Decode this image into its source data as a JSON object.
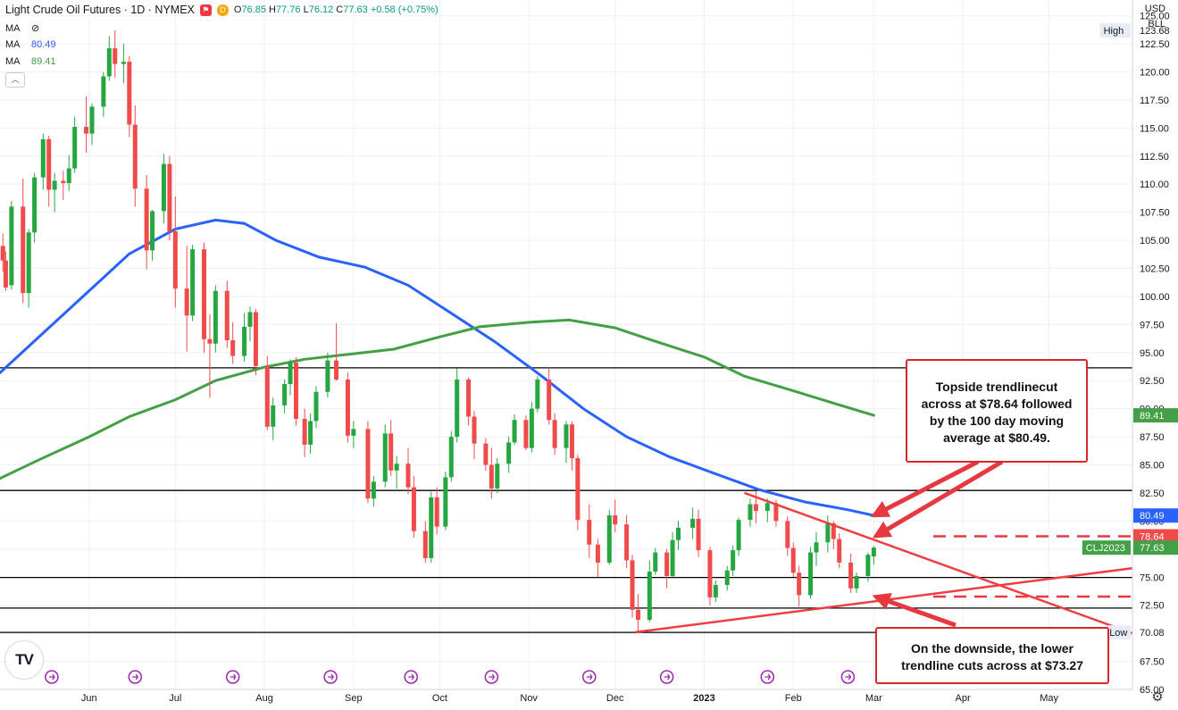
{
  "header": {
    "title": "Light Crude Oil Futures · 1D · NYMEX",
    "open_label": "O",
    "open": "76.85",
    "high_label": "H",
    "high": "77.76",
    "low_label": "L",
    "low": "76.12",
    "close_label": "C",
    "close": "77.63",
    "change": "+0.58 (+0.75%)",
    "flag_icon": "flag-icon",
    "d_icon": "D"
  },
  "indicators": [
    {
      "label": "MA",
      "value": "",
      "icon": "eye-hidden-icon",
      "color": "#131722"
    },
    {
      "label": "MA",
      "value": "80.49",
      "color": "#2962ff"
    },
    {
      "label": "MA",
      "value": "89.41",
      "color": "#43a047"
    }
  ],
  "currency": "USD",
  "unit": "BLL",
  "logo": "TV",
  "settings_icon": "gear-icon",
  "chart_data": {
    "type": "candlestick",
    "y_range": [
      65.0,
      126.4
    ],
    "y_ticks": [
      "125.00",
      "122.50",
      "120.00",
      "117.50",
      "115.00",
      "112.50",
      "110.00",
      "107.50",
      "105.00",
      "102.50",
      "100.00",
      "97.50",
      "95.00",
      "92.50",
      "90.00",
      "87.50",
      "85.00",
      "82.50",
      "80.00",
      "77.50",
      "75.00",
      "72.50",
      "70.00",
      "67.50",
      "65.00"
    ],
    "y_tick_values": [
      125,
      122.5,
      120,
      117.5,
      115,
      112.5,
      110,
      107.5,
      105,
      102.5,
      100,
      97.5,
      95,
      92.5,
      90,
      87.5,
      85,
      82.5,
      80,
      77.5,
      75,
      72.5,
      70,
      67.5,
      65
    ],
    "x_labels": [
      "Jun",
      "Jul",
      "Aug",
      "Sep",
      "Oct",
      "Nov",
      "Dec",
      "2023",
      "Feb",
      "Mar",
      "Apr",
      "May"
    ],
    "x_dates": [
      "2022-06-01",
      "2022-07-01",
      "2022-08-01",
      "2022-09-01",
      "2022-10-01",
      "2022-11-01",
      "2022-12-01",
      "2023-01-01",
      "2023-02-01",
      "2023-03-01",
      "2023-04-01",
      "2023-05-01"
    ],
    "x_range": [
      "2022-05-01",
      "2023-05-30"
    ],
    "event_markers": [
      "2022-05-19",
      "2022-06-17",
      "2022-07-21",
      "2022-08-24",
      "2022-09-21",
      "2022-10-19",
      "2022-11-22",
      "2022-12-19",
      "2023-01-23",
      "2023-02-20"
    ],
    "price_levels": [
      {
        "value": 93.64,
        "label": "93.64",
        "style": "solid"
      },
      {
        "value": 82.72,
        "label": "82.72",
        "style": "solid"
      },
      {
        "value": 74.97,
        "label": "74.97",
        "style": "solid"
      },
      {
        "value": 72.25,
        "label": "72.25",
        "style": "solid"
      },
      {
        "value": 70.08,
        "label": "70.08",
        "style": "solid"
      },
      {
        "value": 78.64,
        "label": "78.64",
        "style": "dashed"
      },
      {
        "value": 73.27,
        "label": "73.27",
        "style": "dashed"
      }
    ],
    "price_tags": [
      {
        "value": 123.68,
        "label": "123.68",
        "caption": "High",
        "kind": "plain"
      },
      {
        "value": 89.41,
        "label": "89.41",
        "kind": "green"
      },
      {
        "value": 80.49,
        "label": "80.49",
        "kind": "blue"
      },
      {
        "value": 78.64,
        "label": "78.64",
        "kind": "red"
      },
      {
        "value": 77.63,
        "label": "77.63",
        "caption": "CLJ2023",
        "kind": "green"
      },
      {
        "value": 70.08,
        "label": "70.08",
        "caption": "Low",
        "kind": "plain"
      }
    ],
    "trendlines": [
      {
        "name": "upper",
        "from": [
          "2023-01-15",
          82.5
        ],
        "to": [
          "2023-05-30",
          70.0
        ]
      },
      {
        "name": "lower",
        "from": [
          "2022-12-08",
          70.1
        ],
        "to": [
          "2023-05-30",
          75.8
        ]
      }
    ],
    "moving_averages": [
      {
        "period_label": "100",
        "value": "80.49",
        "color": "#2962ff",
        "points": [
          [
            "2022-05-01",
            93.2
          ],
          [
            "2022-05-15",
            96.5
          ],
          [
            "2022-06-01",
            100.5
          ],
          [
            "2022-06-15",
            103.8
          ],
          [
            "2022-07-01",
            106.0
          ],
          [
            "2022-07-15",
            106.8
          ],
          [
            "2022-07-25",
            106.5
          ],
          [
            "2022-08-05",
            105.0
          ],
          [
            "2022-08-20",
            103.5
          ],
          [
            "2022-09-05",
            102.6
          ],
          [
            "2022-09-20",
            101.0
          ],
          [
            "2022-10-05",
            98.5
          ],
          [
            "2022-10-20",
            96.0
          ],
          [
            "2022-11-05",
            93.0
          ],
          [
            "2022-11-20",
            90.0
          ],
          [
            "2022-12-05",
            87.5
          ],
          [
            "2022-12-20",
            85.7
          ],
          [
            "2023-01-05",
            84.2
          ],
          [
            "2023-01-20",
            82.8
          ],
          [
            "2023-02-05",
            81.7
          ],
          [
            "2023-02-20",
            81.0
          ],
          [
            "2023-03-01",
            80.49
          ]
        ]
      },
      {
        "period_label": "200",
        "value": "89.41",
        "color": "#43a047",
        "points": [
          [
            "2022-05-01",
            83.8
          ],
          [
            "2022-05-15",
            85.5
          ],
          [
            "2022-06-01",
            87.5
          ],
          [
            "2022-06-15",
            89.3
          ],
          [
            "2022-07-01",
            90.8
          ],
          [
            "2022-07-15",
            92.5
          ],
          [
            "2022-08-01",
            93.7
          ],
          [
            "2022-08-15",
            94.4
          ],
          [
            "2022-09-01",
            94.9
          ],
          [
            "2022-09-15",
            95.3
          ],
          [
            "2022-10-01",
            96.4
          ],
          [
            "2022-10-15",
            97.3
          ],
          [
            "2022-11-01",
            97.7
          ],
          [
            "2022-11-15",
            97.9
          ],
          [
            "2022-12-01",
            97.2
          ],
          [
            "2022-12-15",
            96.0
          ],
          [
            "2023-01-01",
            94.6
          ],
          [
            "2023-01-15",
            92.9
          ],
          [
            "2023-02-01",
            91.6
          ],
          [
            "2023-02-15",
            90.5
          ],
          [
            "2023-03-01",
            89.41
          ]
        ]
      }
    ],
    "candles": [
      [
        "2022-05-02",
        104.5,
        105.6,
        102.2,
        103.2
      ],
      [
        "2022-05-03",
        103.2,
        104.0,
        100.5,
        100.8
      ],
      [
        "2022-05-05",
        101.0,
        108.5,
        100.6,
        108.0
      ],
      [
        "2022-05-09",
        108.0,
        110.5,
        99.4,
        100.3
      ],
      [
        "2022-05-11",
        100.3,
        106.0,
        99.0,
        105.7
      ],
      [
        "2022-05-13",
        105.7,
        111.0,
        104.8,
        110.6
      ],
      [
        "2022-05-16",
        110.6,
        114.5,
        109.5,
        114.0
      ],
      [
        "2022-05-18",
        114.0,
        114.3,
        108.0,
        109.5
      ],
      [
        "2022-05-20",
        109.5,
        111.0,
        107.5,
        110.3
      ],
      [
        "2022-05-23",
        110.3,
        111.2,
        108.6,
        110.1
      ],
      [
        "2022-05-25",
        110.1,
        112.6,
        109.4,
        111.4
      ],
      [
        "2022-05-27",
        111.4,
        116.0,
        111.0,
        115.1
      ],
      [
        "2022-05-31",
        115.1,
        117.8,
        112.8,
        114.5
      ],
      [
        "2022-06-02",
        114.5,
        117.2,
        113.5,
        116.9
      ],
      [
        "2022-06-06",
        116.9,
        120.0,
        116.0,
        119.6
      ],
      [
        "2022-06-08",
        119.6,
        123.2,
        119.2,
        122.1
      ],
      [
        "2022-06-10",
        122.1,
        123.7,
        119.5,
        120.7
      ],
      [
        "2022-06-13",
        120.7,
        122.5,
        119.0,
        120.9
      ],
      [
        "2022-06-15",
        120.9,
        121.4,
        114.2,
        115.3
      ],
      [
        "2022-06-17",
        115.3,
        117.0,
        108.0,
        109.6
      ],
      [
        "2022-06-21",
        109.6,
        110.8,
        102.4,
        104.1
      ],
      [
        "2022-06-23",
        104.1,
        107.7,
        103.2,
        107.6
      ],
      [
        "2022-06-27",
        107.6,
        112.7,
        106.5,
        111.8
      ],
      [
        "2022-06-29",
        111.8,
        112.5,
        105.0,
        105.8
      ],
      [
        "2022-07-01",
        105.8,
        108.9,
        99.0,
        100.7
      ],
      [
        "2022-07-05",
        100.7,
        104.5,
        95.1,
        98.3
      ],
      [
        "2022-07-07",
        98.3,
        104.6,
        97.8,
        104.2
      ],
      [
        "2022-07-11",
        104.2,
        104.8,
        95.0,
        96.2
      ],
      [
        "2022-07-13",
        96.2,
        98.4,
        91.0,
        95.8
      ],
      [
        "2022-07-15",
        95.8,
        101.0,
        95.0,
        100.5
      ],
      [
        "2022-07-19",
        100.5,
        101.4,
        95.4,
        96.1
      ],
      [
        "2022-07-21",
        96.1,
        97.7,
        94.0,
        94.7
      ],
      [
        "2022-07-25",
        94.7,
        98.5,
        94.2,
        97.3
      ],
      [
        "2022-07-27",
        97.3,
        99.1,
        96.0,
        98.6
      ],
      [
        "2022-07-29",
        98.6,
        98.9,
        93.0,
        93.8
      ],
      [
        "2022-08-02",
        93.8,
        94.7,
        88.1,
        88.4
      ],
      [
        "2022-08-04",
        88.4,
        91.0,
        87.2,
        90.3
      ],
      [
        "2022-08-08",
        90.3,
        92.6,
        89.6,
        92.2
      ],
      [
        "2022-08-10",
        92.2,
        94.4,
        91.2,
        94.1
      ],
      [
        "2022-08-12",
        94.1,
        94.6,
        88.5,
        89.1
      ],
      [
        "2022-08-15",
        89.1,
        90.0,
        85.7,
        86.8
      ],
      [
        "2022-08-17",
        86.8,
        89.6,
        86.0,
        88.9
      ],
      [
        "2022-08-19",
        88.9,
        92.0,
        88.3,
        91.5
      ],
      [
        "2022-08-23",
        91.5,
        95.0,
        91.0,
        94.3
      ],
      [
        "2022-08-26",
        94.3,
        97.6,
        92.5,
        92.6
      ],
      [
        "2022-08-30",
        92.6,
        93.2,
        87.0,
        87.6
      ],
      [
        "2022-09-01",
        87.6,
        88.9,
        86.5,
        88.2
      ],
      [
        "2022-09-06",
        88.2,
        88.9,
        81.6,
        82.0
      ],
      [
        "2022-09-08",
        82.0,
        84.0,
        81.3,
        83.5
      ],
      [
        "2022-09-12",
        83.5,
        88.6,
        83.0,
        87.8
      ],
      [
        "2022-09-14",
        87.8,
        89.0,
        84.0,
        84.5
      ],
      [
        "2022-09-16",
        84.5,
        85.8,
        82.9,
        85.1
      ],
      [
        "2022-09-20",
        85.1,
        86.5,
        82.4,
        83.0
      ],
      [
        "2022-09-22",
        83.0,
        84.0,
        78.5,
        79.1
      ],
      [
        "2022-09-26",
        79.1,
        80.0,
        76.3,
        76.7
      ],
      [
        "2022-09-28",
        76.7,
        82.6,
        76.3,
        82.1
      ],
      [
        "2022-09-30",
        82.1,
        83.0,
        78.8,
        79.5
      ],
      [
        "2022-10-03",
        79.5,
        84.4,
        79.2,
        83.9
      ],
      [
        "2022-10-05",
        83.9,
        88.0,
        83.5,
        87.5
      ],
      [
        "2022-10-07",
        87.5,
        93.6,
        87.0,
        92.6
      ],
      [
        "2022-10-11",
        92.6,
        92.8,
        88.5,
        89.3
      ],
      [
        "2022-10-13",
        89.3,
        89.8,
        85.5,
        86.9
      ],
      [
        "2022-10-17",
        86.9,
        87.4,
        84.5,
        85.0
      ],
      [
        "2022-10-19",
        85.0,
        86.5,
        82.0,
        82.9
      ],
      [
        "2022-10-21",
        82.9,
        85.6,
        82.5,
        85.1
      ],
      [
        "2022-10-25",
        85.1,
        87.5,
        84.3,
        87.0
      ],
      [
        "2022-10-27",
        87.0,
        89.5,
        86.8,
        89.0
      ],
      [
        "2022-10-31",
        89.0,
        89.4,
        86.3,
        86.5
      ],
      [
        "2022-11-02",
        86.5,
        90.6,
        86.1,
        90.0
      ],
      [
        "2022-11-04",
        90.0,
        92.9,
        89.7,
        92.6
      ],
      [
        "2022-11-08",
        92.6,
        93.7,
        88.6,
        89.0
      ],
      [
        "2022-11-10",
        89.0,
        89.6,
        85.9,
        86.5
      ],
      [
        "2022-11-14",
        86.5,
        88.9,
        85.2,
        88.6
      ],
      [
        "2022-11-16",
        88.6,
        88.9,
        84.5,
        85.6
      ],
      [
        "2022-11-18",
        85.6,
        85.9,
        79.2,
        80.1
      ],
      [
        "2022-11-22",
        80.1,
        81.5,
        76.7,
        77.9
      ],
      [
        "2022-11-25",
        77.9,
        78.4,
        75.0,
        76.3
      ],
      [
        "2022-11-29",
        76.3,
        81.0,
        76.1,
        80.5
      ],
      [
        "2022-12-01",
        80.5,
        81.9,
        79.0,
        79.7
      ],
      [
        "2022-12-05",
        79.7,
        80.5,
        75.8,
        76.5
      ],
      [
        "2022-12-07",
        76.5,
        77.0,
        71.4,
        72.1
      ],
      [
        "2022-12-09",
        72.1,
        73.5,
        70.1,
        71.2
      ],
      [
        "2022-12-13",
        71.2,
        76.5,
        71.0,
        75.5
      ],
      [
        "2022-12-15",
        75.5,
        77.6,
        75.2,
        77.2
      ],
      [
        "2022-12-19",
        77.2,
        77.5,
        74.0,
        75.1
      ],
      [
        "2022-12-21",
        75.1,
        79.0,
        75.0,
        78.3
      ],
      [
        "2022-12-23",
        78.3,
        80.0,
        77.4,
        79.4
      ],
      [
        "2022-12-28",
        79.4,
        81.2,
        78.4,
        80.2
      ],
      [
        "2022-12-30",
        80.2,
        81.0,
        76.8,
        77.4
      ],
      [
        "2023-01-03",
        77.4,
        77.7,
        72.5,
        73.2
      ],
      [
        "2023-01-05",
        73.2,
        74.7,
        72.8,
        74.3
      ],
      [
        "2023-01-09",
        74.3,
        76.0,
        73.8,
        75.6
      ],
      [
        "2023-01-11",
        75.6,
        77.8,
        75.1,
        77.4
      ],
      [
        "2023-01-13",
        77.4,
        80.3,
        76.9,
        80.1
      ],
      [
        "2023-01-17",
        80.1,
        82.0,
        79.5,
        81.5
      ],
      [
        "2023-01-19",
        81.5,
        82.7,
        79.8,
        80.9
      ],
      [
        "2023-01-23",
        80.9,
        82.0,
        79.9,
        81.6
      ],
      [
        "2023-01-26",
        81.6,
        81.9,
        79.5,
        80.0
      ],
      [
        "2023-01-30",
        80.0,
        80.4,
        76.9,
        77.6
      ],
      [
        "2023-02-01",
        77.6,
        78.1,
        75.0,
        75.4
      ],
      [
        "2023-02-03",
        75.4,
        76.0,
        72.4,
        73.4
      ],
      [
        "2023-02-07",
        73.4,
        77.7,
        73.1,
        77.2
      ],
      [
        "2023-02-09",
        77.2,
        79.0,
        76.0,
        78.1
      ],
      [
        "2023-02-13",
        78.1,
        80.5,
        77.2,
        79.8
      ],
      [
        "2023-02-15",
        79.8,
        80.0,
        77.5,
        78.4
      ],
      [
        "2023-02-17",
        78.4,
        78.9,
        75.8,
        76.3
      ],
      [
        "2023-02-21",
        76.3,
        77.1,
        73.6,
        74.0
      ],
      [
        "2023-02-23",
        74.0,
        75.4,
        73.6,
        75.1
      ],
      [
        "2023-02-27",
        75.1,
        77.2,
        74.6,
        77.0
      ],
      [
        "2023-03-01",
        76.85,
        77.76,
        76.12,
        77.63
      ]
    ]
  },
  "annotations": [
    {
      "text": "Topside trendlinecut across at $78.64 followed by the 100 day moving average at $80.49."
    },
    {
      "text": "On the downside, the lower trendline cuts across at $73.27"
    }
  ]
}
